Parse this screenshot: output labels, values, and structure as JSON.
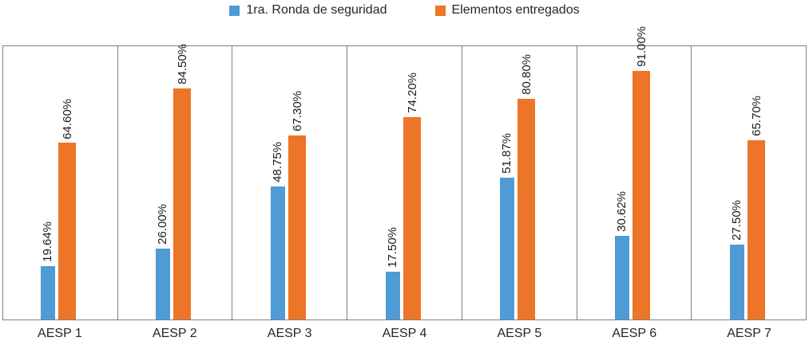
{
  "chart_data": {
    "type": "bar",
    "title": "",
    "xlabel": "",
    "ylabel": "",
    "ylim": [
      0,
      100
    ],
    "grid": "vertical-category-separators",
    "legend_position": "top",
    "label_format": "two-decimal-percent, rotated 90",
    "categories": [
      "AESP 1",
      "AESP 2",
      "AESP 3",
      "AESP 4",
      "AESP 5",
      "AESP 6",
      "AESP 7"
    ],
    "series": [
      {
        "name": "1ra. Ronda de seguridad",
        "color": "#4f9bd5",
        "values": [
          19.64,
          26.0,
          48.75,
          17.5,
          51.87,
          30.62,
          27.5
        ]
      },
      {
        "name": "Elementos entregados",
        "color": "#ed7528",
        "values": [
          64.6,
          84.5,
          67.3,
          74.2,
          80.8,
          91.0,
          65.7
        ]
      }
    ],
    "colors": {
      "axis_line": "#808080",
      "text": "#262626",
      "background": "#ffffff"
    }
  }
}
